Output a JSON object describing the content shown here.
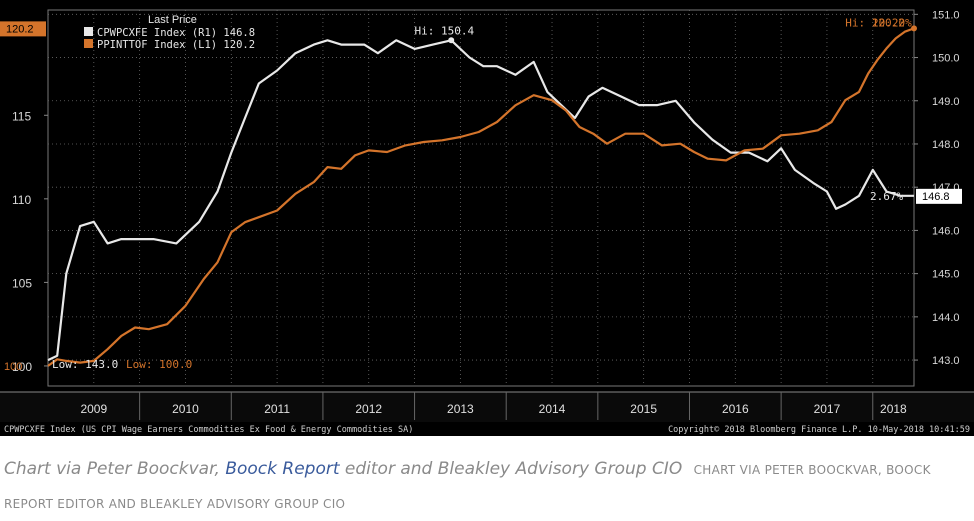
{
  "chart_data": {
    "type": "line",
    "legend_title": "Last Price",
    "left_axis": {
      "ticks": [
        100,
        105,
        110,
        115
      ],
      "ylim": [
        98.8,
        121.3
      ]
    },
    "right_axis": {
      "ticks": [
        "143.0",
        "144.0",
        "145.0",
        "146.0",
        "147.0",
        "148.0",
        "149.0",
        "150.0",
        "151.0"
      ],
      "ylim": [
        142.4,
        151.1
      ]
    },
    "x_labels": [
      "2009",
      "2010",
      "2011",
      "2012",
      "2013",
      "2014",
      "2015",
      "2016",
      "2017",
      "2018"
    ],
    "x_range": [
      2009.0,
      2018.45
    ],
    "series": [
      {
        "name": "CPWPCXFE Index (R1) 146.8",
        "axis": "right",
        "color": "#e8e8e8",
        "x": [
          2009.0,
          2009.1,
          2009.2,
          2009.35,
          2009.5,
          2009.65,
          2009.8,
          2009.95,
          2010.15,
          2010.4,
          2010.65,
          2010.85,
          2011.0,
          2011.15,
          2011.3,
          2011.5,
          2011.7,
          2011.9,
          2012.05,
          2012.2,
          2012.45,
          2012.6,
          2012.8,
          2013.0,
          2013.2,
          2013.4,
          2013.6,
          2013.75,
          2013.9,
          2014.1,
          2014.3,
          2014.45,
          2014.6,
          2014.75,
          2014.9,
          2015.05,
          2015.25,
          2015.45,
          2015.65,
          2015.85,
          2016.05,
          2016.25,
          2016.45,
          2016.65,
          2016.85,
          2017.0,
          2017.15,
          2017.35,
          2017.5,
          2017.6,
          2017.7,
          2017.85,
          2018.0,
          2018.15,
          2018.3,
          2018.45
        ],
        "y": [
          143.0,
          143.1,
          145.0,
          146.1,
          146.2,
          145.7,
          145.8,
          145.8,
          145.8,
          145.7,
          146.2,
          146.9,
          147.8,
          148.6,
          149.4,
          149.7,
          150.1,
          150.3,
          150.4,
          150.3,
          150.3,
          150.1,
          150.4,
          150.2,
          150.3,
          150.4,
          150.0,
          149.8,
          149.8,
          149.6,
          149.9,
          149.2,
          148.9,
          148.6,
          149.1,
          149.3,
          149.1,
          148.9,
          148.9,
          149.0,
          148.5,
          148.1,
          147.8,
          147.8,
          147.6,
          147.9,
          147.4,
          147.1,
          146.9,
          146.5,
          146.6,
          146.8,
          147.4,
          146.9,
          146.8,
          146.8
        ]
      },
      {
        "name": "PPINTTOF Index (L1) 120.2",
        "axis": "left",
        "color": "#d4742b",
        "x": [
          2009.0,
          2009.1,
          2009.2,
          2009.35,
          2009.5,
          2009.65,
          2009.8,
          2009.95,
          2010.1,
          2010.3,
          2010.5,
          2010.7,
          2010.85,
          2011.0,
          2011.15,
          2011.3,
          2011.5,
          2011.7,
          2011.9,
          2012.05,
          2012.2,
          2012.35,
          2012.5,
          2012.7,
          2012.9,
          2013.1,
          2013.3,
          2013.5,
          2013.7,
          2013.9,
          2014.1,
          2014.3,
          2014.5,
          2014.65,
          2014.8,
          2014.95,
          2015.1,
          2015.3,
          2015.5,
          2015.7,
          2015.9,
          2016.05,
          2016.2,
          2016.4,
          2016.6,
          2016.8,
          2017.0,
          2017.2,
          2017.4,
          2017.55,
          2017.7,
          2017.85,
          2017.95,
          2018.05,
          2018.15,
          2018.25,
          2018.35,
          2018.45
        ],
        "y": [
          100.0,
          100.4,
          100.3,
          100.2,
          100.3,
          101.0,
          101.8,
          102.3,
          102.2,
          102.5,
          103.6,
          105.2,
          106.2,
          108.0,
          108.6,
          108.9,
          109.3,
          110.3,
          111.0,
          111.9,
          111.8,
          112.6,
          112.9,
          112.8,
          113.2,
          113.4,
          113.5,
          113.7,
          114.0,
          114.6,
          115.6,
          116.2,
          115.9,
          115.3,
          114.3,
          113.9,
          113.3,
          113.9,
          113.9,
          113.2,
          113.3,
          112.8,
          112.4,
          112.3,
          112.9,
          113.0,
          113.8,
          113.9,
          114.1,
          114.6,
          115.9,
          116.4,
          117.5,
          118.3,
          119.0,
          119.6,
          120.0,
          120.2
        ]
      }
    ],
    "annotations": {
      "white_hi": "Hi: 150.4",
      "orange_hi": "Hi: 120.2",
      "orange_pct": "20.20%",
      "white_low": "Low: 143.0",
      "orange_low": "Low: 100.0",
      "white_pct": "2.67%",
      "left_last_value": "120.2",
      "right_last_value": "146.8"
    },
    "footer_left": "CPWPCXFE Index (US CPI Wage Earners Commodities Ex Food & Energy Commodities SA)",
    "footer_right": "Copyright© 2018 Bloomberg Finance L.P.    10-May-2018 10:41:59",
    "grid": true
  },
  "caption": {
    "prefix": "Chart via Peter Boockvar, ",
    "link_text": "Boock Report",
    "suffix": " editor and Bleakley Advisory Group CIO",
    "credit": "CHART VIA PETER BOOCKVAR, BOOCK REPORT EDITOR AND BLEAKLEY ADVISORY GROUP CIO"
  },
  "colors": {
    "background": "#000000",
    "white_series": "#e8e8e8",
    "orange_series": "#d4742b",
    "link": "#3a5b9c",
    "caption_text": "#8a8a8a"
  }
}
